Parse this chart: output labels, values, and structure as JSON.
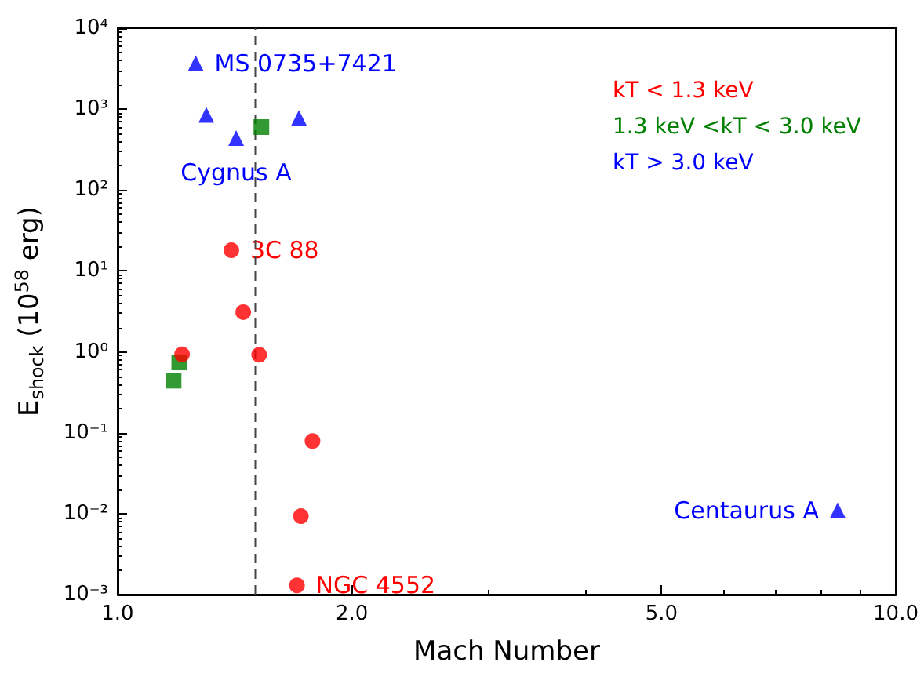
{
  "chart_data": {
    "type": "scatter",
    "xlabel": "Mach Number",
    "ylabel": "E$_{shock}$ (10$^{58}$ erg)",
    "log": "xy",
    "grid": false,
    "legend": "top right",
    "xlim": [
      1,
      10
    ],
    "xticks": [
      {
        "value": 1,
        "label": "1.0"
      },
      {
        "value": 2,
        "label": "2.0"
      },
      {
        "value": 5,
        "label": "5.0"
      },
      {
        "value": 10,
        "label": "10.0"
      }
    ],
    "ylim": [
      0.001,
      10000
    ],
    "yticks": [
      {
        "value": 0.001,
        "label": "10⁻³"
      },
      {
        "value": 0.01,
        "label": "10⁻²"
      },
      {
        "value": 0.1,
        "label": "10⁻¹"
      },
      {
        "value": 1,
        "label": "10⁰"
      },
      {
        "value": 10,
        "label": "10¹"
      },
      {
        "value": 100,
        "label": "10²"
      },
      {
        "value": 1000,
        "label": "10³"
      },
      {
        "value": 10000,
        "label": "10⁴"
      }
    ],
    "series": [
      {
        "name": "kT < 1.3 keV",
        "color": "#ff0000",
        "marker": "circle",
        "x": [
          1.21,
          1.45,
          1.52,
          1.78,
          1.72,
          1.7,
          1.4
        ],
        "values": [
          0.93,
          3.1,
          0.92,
          0.079,
          0.0093,
          0.0013,
          18
        ]
      },
      {
        "name": "1.3 keV <kT < 3.0 keV",
        "color": "#008000",
        "marker": "square",
        "x": [
          1.18,
          1.2,
          1.53
        ],
        "values": [
          0.44,
          0.74,
          600
        ]
      },
      {
        "name": "kT > 3.0 keV",
        "color": "#0000ff",
        "marker": "triangle",
        "x": [
          1.26,
          1.3,
          1.42,
          1.71,
          8.42
        ],
        "values": [
          3700,
          850,
          440,
          780,
          0.011
        ]
      }
    ],
    "ref_lines": [
      {
        "axis": "x",
        "value": 1.5,
        "color": "#444444",
        "line_style": "dashed"
      }
    ],
    "annotations": [
      {
        "text": "MS 0735+7421",
        "x": 1.26,
        "y": 3700
      },
      {
        "text": "Cygnus A",
        "x": 1.42,
        "y": 440
      },
      {
        "text": "3C 88",
        "x": 1.4,
        "y": 18
      },
      {
        "text": "NGC 4552",
        "x": 1.7,
        "y": 0.0013
      },
      {
        "text": "Centaurus A",
        "x": 8.42,
        "y": 0.011
      }
    ]
  }
}
